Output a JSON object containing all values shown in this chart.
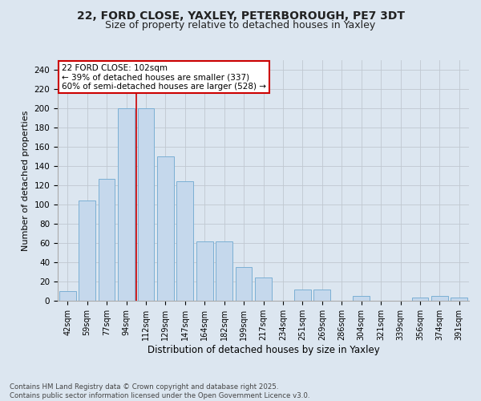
{
  "title1": "22, FORD CLOSE, YAXLEY, PETERBOROUGH, PE7 3DT",
  "title2": "Size of property relative to detached houses in Yaxley",
  "xlabel": "Distribution of detached houses by size in Yaxley",
  "ylabel": "Number of detached properties",
  "categories": [
    "42sqm",
    "59sqm",
    "77sqm",
    "94sqm",
    "112sqm",
    "129sqm",
    "147sqm",
    "164sqm",
    "182sqm",
    "199sqm",
    "217sqm",
    "234sqm",
    "251sqm",
    "269sqm",
    "286sqm",
    "304sqm",
    "321sqm",
    "339sqm",
    "356sqm",
    "374sqm",
    "391sqm"
  ],
  "values": [
    10,
    104,
    127,
    200,
    200,
    150,
    124,
    62,
    62,
    35,
    24,
    0,
    12,
    12,
    0,
    5,
    0,
    0,
    3,
    5,
    3
  ],
  "bar_color": "#c5d8ec",
  "bar_edge_color": "#7bafd4",
  "annotation_line1": "22 FORD CLOSE: 102sqm",
  "annotation_line2": "← 39% of detached houses are smaller (337)",
  "annotation_line3": "60% of semi-detached houses are larger (528) →",
  "annotation_box_color": "#ffffff",
  "annotation_box_edge_color": "#cc0000",
  "vline_x": 3.5,
  "vline_color": "#cc0000",
  "ylim": [
    0,
    250
  ],
  "yticks": [
    0,
    20,
    40,
    60,
    80,
    100,
    120,
    140,
    160,
    180,
    200,
    220,
    240
  ],
  "grid_color": "#c0c8d0",
  "background_color": "#dce6f0",
  "footer_text": "Contains HM Land Registry data © Crown copyright and database right 2025.\nContains public sector information licensed under the Open Government Licence v3.0.",
  "title_fontsize": 10,
  "subtitle_fontsize": 9,
  "axis_bg_color": "#dce6f0"
}
